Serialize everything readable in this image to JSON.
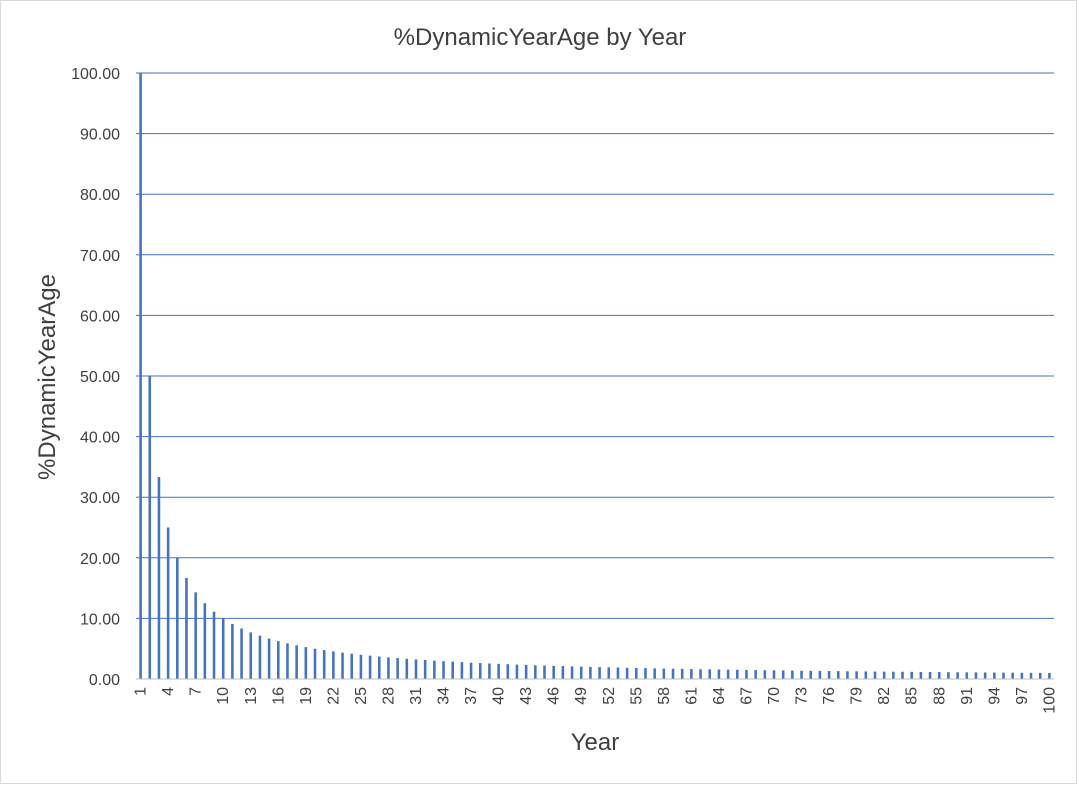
{
  "chart_data": {
    "type": "bar",
    "title": "%DynamicYearAge by Year",
    "xlabel": "Year",
    "ylabel": "%DynamicYearAge",
    "ylim": [
      0,
      100
    ],
    "y_ticks": [
      "0.00",
      "10.00",
      "20.00",
      "30.00",
      "40.00",
      "50.00",
      "60.00",
      "70.00",
      "80.00",
      "90.00",
      "100.00"
    ],
    "x_tick_labels": [
      "1",
      "4",
      "7",
      "10",
      "13",
      "16",
      "19",
      "22",
      "25",
      "28",
      "31",
      "34",
      "37",
      "40",
      "43",
      "46",
      "49",
      "52",
      "55",
      "58",
      "61",
      "64",
      "67",
      "70",
      "73",
      "76",
      "79",
      "82",
      "85",
      "88",
      "91",
      "94",
      "97",
      "100"
    ],
    "grid": true,
    "legend": "none",
    "colors": {
      "bar": "#4472c4",
      "grid": "#4472c4",
      "text": "#404040"
    },
    "categories": [
      1,
      2,
      3,
      4,
      5,
      6,
      7,
      8,
      9,
      10,
      11,
      12,
      13,
      14,
      15,
      16,
      17,
      18,
      19,
      20,
      21,
      22,
      23,
      24,
      25,
      26,
      27,
      28,
      29,
      30,
      31,
      32,
      33,
      34,
      35,
      36,
      37,
      38,
      39,
      40,
      41,
      42,
      43,
      44,
      45,
      46,
      47,
      48,
      49,
      50,
      51,
      52,
      53,
      54,
      55,
      56,
      57,
      58,
      59,
      60,
      61,
      62,
      63,
      64,
      65,
      66,
      67,
      68,
      69,
      70,
      71,
      72,
      73,
      74,
      75,
      76,
      77,
      78,
      79,
      80,
      81,
      82,
      83,
      84,
      85,
      86,
      87,
      88,
      89,
      90,
      91,
      92,
      93,
      94,
      95,
      96,
      97,
      98,
      99,
      100
    ],
    "values": [
      100.0,
      50.0,
      33.33,
      25.0,
      20.0,
      16.67,
      14.29,
      12.5,
      11.11,
      10.0,
      9.09,
      8.33,
      7.69,
      7.14,
      6.67,
      6.25,
      5.88,
      5.56,
      5.26,
      5.0,
      4.76,
      4.55,
      4.35,
      4.17,
      4.0,
      3.85,
      3.7,
      3.57,
      3.45,
      3.33,
      3.23,
      3.13,
      3.03,
      2.94,
      2.86,
      2.78,
      2.7,
      2.63,
      2.56,
      2.5,
      2.44,
      2.38,
      2.33,
      2.27,
      2.22,
      2.17,
      2.13,
      2.08,
      2.04,
      2.0,
      1.96,
      1.92,
      1.89,
      1.85,
      1.82,
      1.79,
      1.75,
      1.72,
      1.69,
      1.67,
      1.64,
      1.61,
      1.59,
      1.56,
      1.54,
      1.52,
      1.49,
      1.47,
      1.45,
      1.43,
      1.41,
      1.39,
      1.37,
      1.35,
      1.33,
      1.32,
      1.3,
      1.28,
      1.27,
      1.25,
      1.23,
      1.22,
      1.2,
      1.19,
      1.18,
      1.16,
      1.15,
      1.14,
      1.12,
      1.11,
      1.1,
      1.09,
      1.08,
      1.06,
      1.05,
      1.04,
      1.03,
      1.02,
      1.01,
      1.0
    ]
  }
}
